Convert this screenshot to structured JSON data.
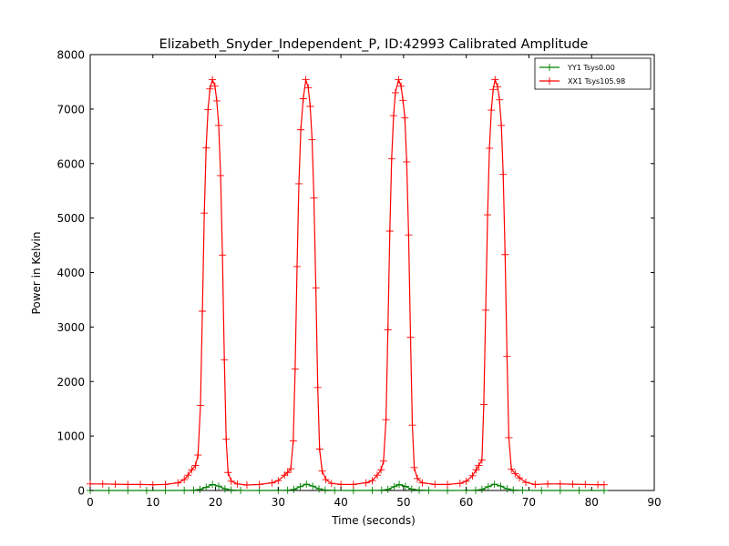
{
  "chart_data": {
    "type": "line",
    "title": "Elizabeth_Snyder_Independent_P, ID:42993 Calibrated Amplitude",
    "xlabel": "Time (seconds)",
    "ylabel": "Power in Kelvin",
    "xlim": [
      0,
      90
    ],
    "ylim": [
      0,
      8000
    ],
    "xticks": [
      0,
      10,
      20,
      30,
      40,
      50,
      60,
      70,
      80,
      90
    ],
    "yticks": [
      0,
      1000,
      2000,
      3000,
      4000,
      5000,
      6000,
      7000,
      8000
    ],
    "grid": false,
    "legend_position": "top-right",
    "marker": "+",
    "series": [
      {
        "name": "YY1 Tsys0.00",
        "color": "#008000",
        "points": [
          [
            0,
            0
          ],
          [
            3,
            0
          ],
          [
            6,
            0
          ],
          [
            9,
            0
          ],
          [
            12,
            0
          ],
          [
            15,
            2
          ],
          [
            16.5,
            5
          ],
          [
            17.5,
            20
          ],
          [
            18.5,
            60
          ],
          [
            19.5,
            110
          ],
          [
            20.5,
            80
          ],
          [
            21.5,
            30
          ],
          [
            22.5,
            8
          ],
          [
            24,
            2
          ],
          [
            27,
            0
          ],
          [
            30,
            2
          ],
          [
            31.5,
            5
          ],
          [
            32.5,
            20
          ],
          [
            33.5,
            70
          ],
          [
            34.5,
            115
          ],
          [
            35.5,
            80
          ],
          [
            36.5,
            30
          ],
          [
            37.5,
            8
          ],
          [
            39,
            2
          ],
          [
            42,
            0
          ],
          [
            45,
            2
          ],
          [
            46.5,
            5
          ],
          [
            47.5,
            20
          ],
          [
            48.5,
            70
          ],
          [
            49.3,
            110
          ],
          [
            50.3,
            75
          ],
          [
            51.3,
            25
          ],
          [
            52.5,
            8
          ],
          [
            54,
            2
          ],
          [
            57,
            0
          ],
          [
            60,
            2
          ],
          [
            61.5,
            5
          ],
          [
            62.5,
            20
          ],
          [
            63.5,
            70
          ],
          [
            64.5,
            115
          ],
          [
            65.5,
            80
          ],
          [
            66.5,
            30
          ],
          [
            67.5,
            8
          ],
          [
            69,
            2
          ],
          [
            72,
            0
          ],
          [
            75,
            0
          ],
          [
            78,
            0
          ],
          [
            82,
            0
          ]
        ]
      },
      {
        "name": "XX1 Tsys105.98",
        "color": "#ff0000",
        "points": [
          [
            0,
            120
          ],
          [
            2,
            120
          ],
          [
            4,
            115
          ],
          [
            6,
            110
          ],
          [
            8,
            110
          ],
          [
            10,
            105
          ],
          [
            12,
            110
          ],
          [
            14,
            140
          ],
          [
            15,
            200
          ],
          [
            15.6,
            280
          ],
          [
            16.2,
            380
          ],
          [
            16.8,
            460
          ],
          [
            17.2,
            650
          ],
          [
            17.6,
            1560
          ],
          [
            17.9,
            3290
          ],
          [
            18.2,
            5090
          ],
          [
            18.5,
            6290
          ],
          [
            18.8,
            6990
          ],
          [
            19.1,
            7370
          ],
          [
            19.5,
            7540
          ],
          [
            19.9,
            7420
          ],
          [
            20.2,
            7150
          ],
          [
            20.5,
            6700
          ],
          [
            20.8,
            5780
          ],
          [
            21.1,
            4320
          ],
          [
            21.4,
            2400
          ],
          [
            21.7,
            940
          ],
          [
            22,
            330
          ],
          [
            22.5,
            170
          ],
          [
            23.5,
            120
          ],
          [
            25,
            100
          ],
          [
            27,
            110
          ],
          [
            29,
            140
          ],
          [
            30,
            180
          ],
          [
            31,
            280
          ],
          [
            31.5,
            330
          ],
          [
            32,
            400
          ],
          [
            32.4,
            910
          ],
          [
            32.7,
            2230
          ],
          [
            33,
            4110
          ],
          [
            33.3,
            5630
          ],
          [
            33.6,
            6620
          ],
          [
            34,
            7190
          ],
          [
            34.4,
            7540
          ],
          [
            34.8,
            7390
          ],
          [
            35.1,
            7050
          ],
          [
            35.4,
            6440
          ],
          [
            35.7,
            5370
          ],
          [
            36,
            3720
          ],
          [
            36.3,
            1890
          ],
          [
            36.6,
            760
          ],
          [
            37,
            360
          ],
          [
            37.6,
            200
          ],
          [
            38.5,
            130
          ],
          [
            40,
            110
          ],
          [
            42,
            110
          ],
          [
            44,
            140
          ],
          [
            45,
            180
          ],
          [
            45.8,
            280
          ],
          [
            46.4,
            380
          ],
          [
            46.8,
            540
          ],
          [
            47.2,
            1300
          ],
          [
            47.5,
            2950
          ],
          [
            47.8,
            4760
          ],
          [
            48.1,
            6090
          ],
          [
            48.4,
            6880
          ],
          [
            48.7,
            7300
          ],
          [
            49.2,
            7540
          ],
          [
            49.6,
            7420
          ],
          [
            49.9,
            7160
          ],
          [
            50.2,
            6840
          ],
          [
            50.5,
            6030
          ],
          [
            50.8,
            4690
          ],
          [
            51.1,
            2810
          ],
          [
            51.4,
            1200
          ],
          [
            51.7,
            420
          ],
          [
            52.2,
            220
          ],
          [
            53,
            140
          ],
          [
            55,
            110
          ],
          [
            57,
            110
          ],
          [
            59,
            130
          ],
          [
            60,
            170
          ],
          [
            61,
            270
          ],
          [
            61.6,
            380
          ],
          [
            62,
            460
          ],
          [
            62.5,
            560
          ],
          [
            62.8,
            1580
          ],
          [
            63.1,
            3310
          ],
          [
            63.4,
            5060
          ],
          [
            63.7,
            6280
          ],
          [
            64,
            6980
          ],
          [
            64.3,
            7360
          ],
          [
            64.6,
            7540
          ],
          [
            65,
            7410
          ],
          [
            65.3,
            7170
          ],
          [
            65.6,
            6700
          ],
          [
            65.9,
            5800
          ],
          [
            66.2,
            4330
          ],
          [
            66.5,
            2460
          ],
          [
            66.8,
            970
          ],
          [
            67.2,
            390
          ],
          [
            67.8,
            310
          ],
          [
            68.5,
            230
          ],
          [
            69.5,
            150
          ],
          [
            71,
            110
          ],
          [
            73,
            120
          ],
          [
            75,
            120
          ],
          [
            77,
            115
          ],
          [
            79,
            110
          ],
          [
            81,
            105
          ],
          [
            82,
            105
          ]
        ]
      }
    ]
  }
}
